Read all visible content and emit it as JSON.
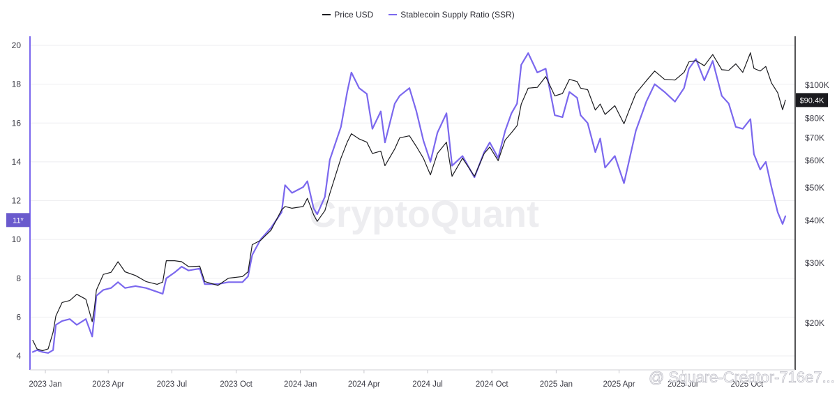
{
  "chart_data": {
    "type": "line",
    "title": "",
    "xlabel": "",
    "ylabel": "",
    "legend": {
      "position": "top-center",
      "items": [
        {
          "label": "Price USD",
          "color": "#1b1b1f"
        },
        {
          "label": "Stablecoin Supply Ratio (SSR)",
          "color": "#7b68ee"
        }
      ]
    },
    "x_ticks": [
      "2023 Jan",
      "2023 Apr",
      "2023 Jul",
      "2023 Oct",
      "2024 Jan",
      "2024 Apr",
      "2024 Jul",
      "2024 Oct",
      "2025 Jan",
      "2025 Apr",
      "2025 Jul",
      "2025 Oct"
    ],
    "left_axis": {
      "min": 4,
      "max": 20,
      "ticks": [
        "4",
        "6",
        "8",
        "10",
        "12",
        "14",
        "16",
        "18",
        "20"
      ]
    },
    "right_axis": {
      "scale": "log",
      "min": 14000,
      "max": 135000,
      "ticks": [
        "$20K",
        "$30K",
        "$40K",
        "$50K",
        "$60K",
        "$70K",
        "$80K",
        "$100K"
      ],
      "tick_values": [
        20000,
        30000,
        40000,
        50000,
        60000,
        70000,
        80000,
        100000
      ]
    },
    "current_ssr_label": "11*",
    "current_ssr_value": 11,
    "current_price_label": "$90.4K",
    "current_price_value": 90400,
    "grid": true,
    "watermark": "CryptoQuant",
    "credit": "@ Square-Creator-716e7...",
    "series": [
      {
        "name": "Stablecoin Supply Ratio (SSR)",
        "axis": "left",
        "color": "#7b68ee",
        "points": [
          [
            "2022-12-14",
            4.2
          ],
          [
            "2022-12-20",
            4.3
          ],
          [
            "2022-12-28",
            4.2
          ],
          [
            "2023-01-05",
            4.15
          ],
          [
            "2023-01-12",
            4.3
          ],
          [
            "2023-01-16",
            5.6
          ],
          [
            "2023-01-25",
            5.8
          ],
          [
            "2023-02-05",
            5.9
          ],
          [
            "2023-02-15",
            5.6
          ],
          [
            "2023-02-28",
            5.9
          ],
          [
            "2023-03-09",
            5.0
          ],
          [
            "2023-03-12",
            6.0
          ],
          [
            "2023-03-15",
            7.1
          ],
          [
            "2023-03-25",
            7.4
          ],
          [
            "2023-04-05",
            7.5
          ],
          [
            "2023-04-15",
            7.8
          ],
          [
            "2023-04-25",
            7.5
          ],
          [
            "2023-05-10",
            7.6
          ],
          [
            "2023-05-25",
            7.5
          ],
          [
            "2023-06-10",
            7.3
          ],
          [
            "2023-06-18",
            7.2
          ],
          [
            "2023-06-23",
            8.0
          ],
          [
            "2023-07-05",
            8.3
          ],
          [
            "2023-07-15",
            8.6
          ],
          [
            "2023-07-25",
            8.4
          ],
          [
            "2023-08-10",
            8.5
          ],
          [
            "2023-08-17",
            7.7
          ],
          [
            "2023-09-05",
            7.7
          ],
          [
            "2023-09-20",
            7.8
          ],
          [
            "2023-10-10",
            7.8
          ],
          [
            "2023-10-18",
            8.1
          ],
          [
            "2023-10-24",
            9.2
          ],
          [
            "2023-11-05",
            10.0
          ],
          [
            "2023-11-20",
            10.6
          ],
          [
            "2023-12-05",
            11.4
          ],
          [
            "2023-12-10",
            12.8
          ],
          [
            "2023-12-20",
            12.4
          ],
          [
            "2024-01-05",
            12.7
          ],
          [
            "2024-01-11",
            13.0
          ],
          [
            "2024-01-20",
            11.6
          ],
          [
            "2024-01-25",
            11.3
          ],
          [
            "2024-02-05",
            12.2
          ],
          [
            "2024-02-12",
            14.1
          ],
          [
            "2024-02-28",
            15.8
          ],
          [
            "2024-03-08",
            17.6
          ],
          [
            "2024-03-14",
            18.6
          ],
          [
            "2024-03-25",
            17.8
          ],
          [
            "2024-04-05",
            17.5
          ],
          [
            "2024-04-13",
            15.7
          ],
          [
            "2024-04-25",
            16.6
          ],
          [
            "2024-05-01",
            15.0
          ],
          [
            "2024-05-15",
            17.0
          ],
          [
            "2024-05-22",
            17.4
          ],
          [
            "2024-06-05",
            17.8
          ],
          [
            "2024-06-15",
            16.6
          ],
          [
            "2024-06-25",
            15.1
          ],
          [
            "2024-07-05",
            14.0
          ],
          [
            "2024-07-15",
            15.5
          ],
          [
            "2024-07-28",
            16.5
          ],
          [
            "2024-08-05",
            13.8
          ],
          [
            "2024-08-20",
            14.3
          ],
          [
            "2024-09-06",
            13.2
          ],
          [
            "2024-09-20",
            14.5
          ],
          [
            "2024-09-28",
            15.0
          ],
          [
            "2024-10-10",
            14.2
          ],
          [
            "2024-10-20",
            15.6
          ],
          [
            "2024-10-29",
            16.5
          ],
          [
            "2024-11-06",
            17.0
          ],
          [
            "2024-11-12",
            19.0
          ],
          [
            "2024-11-22",
            19.6
          ],
          [
            "2024-12-05",
            18.6
          ],
          [
            "2024-12-17",
            18.8
          ],
          [
            "2024-12-30",
            16.4
          ],
          [
            "2025-01-10",
            16.3
          ],
          [
            "2025-01-20",
            17.6
          ],
          [
            "2025-01-31",
            17.3
          ],
          [
            "2025-02-05",
            16.4
          ],
          [
            "2025-02-15",
            16.0
          ],
          [
            "2025-02-26",
            14.5
          ],
          [
            "2025-03-05",
            15.2
          ],
          [
            "2025-03-12",
            13.7
          ],
          [
            "2025-03-26",
            14.3
          ],
          [
            "2025-04-08",
            12.9
          ],
          [
            "2025-04-15",
            14.0
          ],
          [
            "2025-04-25",
            15.6
          ],
          [
            "2025-05-10",
            17.1
          ],
          [
            "2025-05-22",
            18.0
          ],
          [
            "2025-06-05",
            17.6
          ],
          [
            "2025-06-20",
            17.1
          ],
          [
            "2025-07-03",
            17.8
          ],
          [
            "2025-07-10",
            18.8
          ],
          [
            "2025-07-20",
            19.3
          ],
          [
            "2025-08-01",
            18.2
          ],
          [
            "2025-08-13",
            19.2
          ],
          [
            "2025-08-26",
            17.4
          ],
          [
            "2025-09-05",
            17.0
          ],
          [
            "2025-09-15",
            15.8
          ],
          [
            "2025-09-25",
            15.7
          ],
          [
            "2025-10-06",
            16.2
          ],
          [
            "2025-10-11",
            14.4
          ],
          [
            "2025-10-20",
            13.6
          ],
          [
            "2025-10-28",
            14.0
          ],
          [
            "2025-11-05",
            12.7
          ],
          [
            "2025-11-14",
            11.4
          ],
          [
            "2025-11-21",
            10.8
          ],
          [
            "2025-11-25",
            11.2
          ]
        ]
      },
      {
        "name": "Price USD",
        "axis": "right",
        "color": "#1b1b1f",
        "points": [
          [
            "2022-12-14",
            17800
          ],
          [
            "2022-12-20",
            16800
          ],
          [
            "2022-12-28",
            16600
          ],
          [
            "2023-01-05",
            16800
          ],
          [
            "2023-01-12",
            18800
          ],
          [
            "2023-01-16",
            21000
          ],
          [
            "2023-01-25",
            23000
          ],
          [
            "2023-02-05",
            23300
          ],
          [
            "2023-02-15",
            24300
          ],
          [
            "2023-02-28",
            23500
          ],
          [
            "2023-03-09",
            20200
          ],
          [
            "2023-03-12",
            22000
          ],
          [
            "2023-03-15",
            25000
          ],
          [
            "2023-03-25",
            27800
          ],
          [
            "2023-04-05",
            28200
          ],
          [
            "2023-04-15",
            30300
          ],
          [
            "2023-04-25",
            28300
          ],
          [
            "2023-05-10",
            27600
          ],
          [
            "2023-05-25",
            26500
          ],
          [
            "2023-06-10",
            26000
          ],
          [
            "2023-06-18",
            26400
          ],
          [
            "2023-06-23",
            30500
          ],
          [
            "2023-07-05",
            30500
          ],
          [
            "2023-07-15",
            30300
          ],
          [
            "2023-07-25",
            29300
          ],
          [
            "2023-08-10",
            29400
          ],
          [
            "2023-08-17",
            26500
          ],
          [
            "2023-09-05",
            25800
          ],
          [
            "2023-09-20",
            27100
          ],
          [
            "2023-10-10",
            27400
          ],
          [
            "2023-10-18",
            28300
          ],
          [
            "2023-10-24",
            34000
          ],
          [
            "2023-11-05",
            35000
          ],
          [
            "2023-11-20",
            37500
          ],
          [
            "2023-12-05",
            43000
          ],
          [
            "2023-12-10",
            44000
          ],
          [
            "2023-12-20",
            43500
          ],
          [
            "2024-01-05",
            44000
          ],
          [
            "2024-01-11",
            46500
          ],
          [
            "2024-01-20",
            41600
          ],
          [
            "2024-01-25",
            39800
          ],
          [
            "2024-02-05",
            42800
          ],
          [
            "2024-02-12",
            48000
          ],
          [
            "2024-02-28",
            61000
          ],
          [
            "2024-03-08",
            68000
          ],
          [
            "2024-03-14",
            72000
          ],
          [
            "2024-03-25",
            69500
          ],
          [
            "2024-04-05",
            68000
          ],
          [
            "2024-04-13",
            63000
          ],
          [
            "2024-04-25",
            64000
          ],
          [
            "2024-05-01",
            58000
          ],
          [
            "2024-05-15",
            65000
          ],
          [
            "2024-05-22",
            70000
          ],
          [
            "2024-06-05",
            71000
          ],
          [
            "2024-06-15",
            66000
          ],
          [
            "2024-06-25",
            61000
          ],
          [
            "2024-07-05",
            54500
          ],
          [
            "2024-07-15",
            63000
          ],
          [
            "2024-07-28",
            68000
          ],
          [
            "2024-08-05",
            54000
          ],
          [
            "2024-08-20",
            61000
          ],
          [
            "2024-09-06",
            54000
          ],
          [
            "2024-09-20",
            63000
          ],
          [
            "2024-09-28",
            65800
          ],
          [
            "2024-10-10",
            60000
          ],
          [
            "2024-10-20",
            69000
          ],
          [
            "2024-10-29",
            72500
          ],
          [
            "2024-11-06",
            76000
          ],
          [
            "2024-11-12",
            88000
          ],
          [
            "2024-11-22",
            98000
          ],
          [
            "2024-12-05",
            98500
          ],
          [
            "2024-12-17",
            106000
          ],
          [
            "2024-12-30",
            93000
          ],
          [
            "2025-01-10",
            94500
          ],
          [
            "2025-01-20",
            104000
          ],
          [
            "2025-01-31",
            102500
          ],
          [
            "2025-02-05",
            98000
          ],
          [
            "2025-02-15",
            97000
          ],
          [
            "2025-02-26",
            84500
          ],
          [
            "2025-03-05",
            88000
          ],
          [
            "2025-03-12",
            82000
          ],
          [
            "2025-03-26",
            87000
          ],
          [
            "2025-04-08",
            77000
          ],
          [
            "2025-04-15",
            84000
          ],
          [
            "2025-04-25",
            94500
          ],
          [
            "2025-05-10",
            103000
          ],
          [
            "2025-05-22",
            110000
          ],
          [
            "2025-06-05",
            104000
          ],
          [
            "2025-06-20",
            103500
          ],
          [
            "2025-07-03",
            109000
          ],
          [
            "2025-07-10",
            117000
          ],
          [
            "2025-07-20",
            118000
          ],
          [
            "2025-08-01",
            114000
          ],
          [
            "2025-08-13",
            123000
          ],
          [
            "2025-08-26",
            111000
          ],
          [
            "2025-09-05",
            110500
          ],
          [
            "2025-09-15",
            115500
          ],
          [
            "2025-09-25",
            109000
          ],
          [
            "2025-10-06",
            124500
          ],
          [
            "2025-10-11",
            112000
          ],
          [
            "2025-10-20",
            110000
          ],
          [
            "2025-10-28",
            113500
          ],
          [
            "2025-11-05",
            101500
          ],
          [
            "2025-11-14",
            95000
          ],
          [
            "2025-11-21",
            84700
          ],
          [
            "2025-11-25",
            90400
          ]
        ]
      }
    ]
  }
}
